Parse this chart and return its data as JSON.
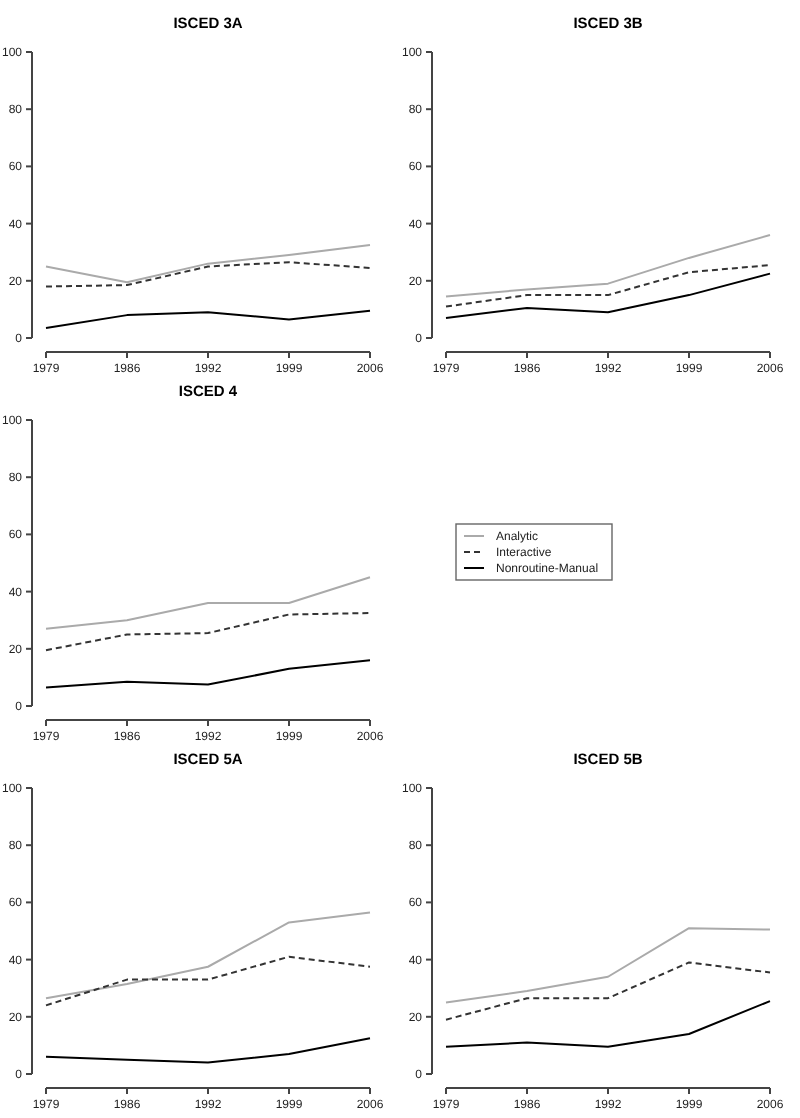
{
  "chart_data": [
    {
      "type": "line",
      "title": "ISCED 3A",
      "categories": [
        "1979",
        "1986",
        "1992",
        "1999",
        "2006"
      ],
      "ylim": [
        0,
        100
      ],
      "yticks": [
        0,
        20,
        40,
        60,
        80,
        100
      ],
      "grid": false,
      "legend": false,
      "series": [
        {
          "color": "#aaaaaa",
          "line_style": "solid",
          "values": [
            25,
            19.5,
            26,
            29,
            32.5
          ]
        },
        {
          "color": "#333333",
          "line_style": "dashed",
          "values": [
            18,
            18.5,
            25,
            26.5,
            24.5
          ]
        },
        {
          "color": "#000000",
          "line_style": "solid",
          "values": [
            3.5,
            8,
            9,
            6.5,
            9.5
          ]
        }
      ]
    },
    {
      "type": "line",
      "title": "ISCED 3B",
      "categories": [
        "1979",
        "1986",
        "1992",
        "1999",
        "2006"
      ],
      "ylim": [
        0,
        100
      ],
      "yticks": [
        0,
        20,
        40,
        60,
        80,
        100
      ],
      "grid": false,
      "legend": false,
      "series": [
        {
          "color": "#aaaaaa",
          "line_style": "solid",
          "values": [
            14.5,
            17,
            19,
            28,
            36
          ]
        },
        {
          "color": "#333333",
          "line_style": "dashed",
          "values": [
            11,
            15,
            15,
            23,
            25.5
          ]
        },
        {
          "color": "#000000",
          "line_style": "solid",
          "values": [
            7,
            10.5,
            9,
            15,
            22.5
          ]
        }
      ]
    },
    {
      "type": "line",
      "title": "ISCED 4",
      "categories": [
        "1979",
        "1986",
        "1992",
        "1999",
        "2006"
      ],
      "ylim": [
        0,
        100
      ],
      "yticks": [
        0,
        20,
        40,
        60,
        80,
        100
      ],
      "grid": false,
      "legend": "right",
      "series": [
        {
          "name": "Analytic",
          "color": "#aaaaaa",
          "line_style": "solid",
          "values": [
            27,
            30,
            36,
            36,
            45
          ]
        },
        {
          "name": "Interactive",
          "color": "#333333",
          "line_style": "dashed",
          "values": [
            19.5,
            25,
            25.5,
            32,
            32.5
          ]
        },
        {
          "name": "Nonroutine-Manual",
          "color": "#000000",
          "line_style": "solid",
          "values": [
            6.5,
            8.5,
            7.5,
            13,
            16
          ]
        }
      ]
    },
    {
      "type": "line",
      "title": "ISCED 5A",
      "categories": [
        "1979",
        "1986",
        "1992",
        "1999",
        "2006"
      ],
      "ylim": [
        0,
        100
      ],
      "yticks": [
        0,
        20,
        40,
        60,
        80,
        100
      ],
      "grid": false,
      "legend": false,
      "series": [
        {
          "color": "#aaaaaa",
          "line_style": "solid",
          "values": [
            26.5,
            31.5,
            37.5,
            53,
            56.5
          ]
        },
        {
          "color": "#333333",
          "line_style": "dashed",
          "values": [
            24,
            33,
            33,
            41,
            37.5
          ]
        },
        {
          "color": "#000000",
          "line_style": "solid",
          "values": [
            6,
            5,
            4,
            7,
            12.5
          ]
        }
      ]
    },
    {
      "type": "line",
      "title": "ISCED 5B",
      "categories": [
        "1979",
        "1986",
        "1992",
        "1999",
        "2006"
      ],
      "ylim": [
        0,
        100
      ],
      "yticks": [
        0,
        20,
        40,
        60,
        80,
        100
      ],
      "grid": false,
      "legend": false,
      "series": [
        {
          "color": "#aaaaaa",
          "line_style": "solid",
          "values": [
            25,
            29,
            34,
            51,
            50.5
          ]
        },
        {
          "color": "#333333",
          "line_style": "dashed",
          "values": [
            19,
            26.5,
            26.5,
            39,
            35.5
          ]
        },
        {
          "color": "#000000",
          "line_style": "solid",
          "values": [
            9.5,
            11,
            9.5,
            14,
            25.5
          ]
        }
      ]
    }
  ]
}
